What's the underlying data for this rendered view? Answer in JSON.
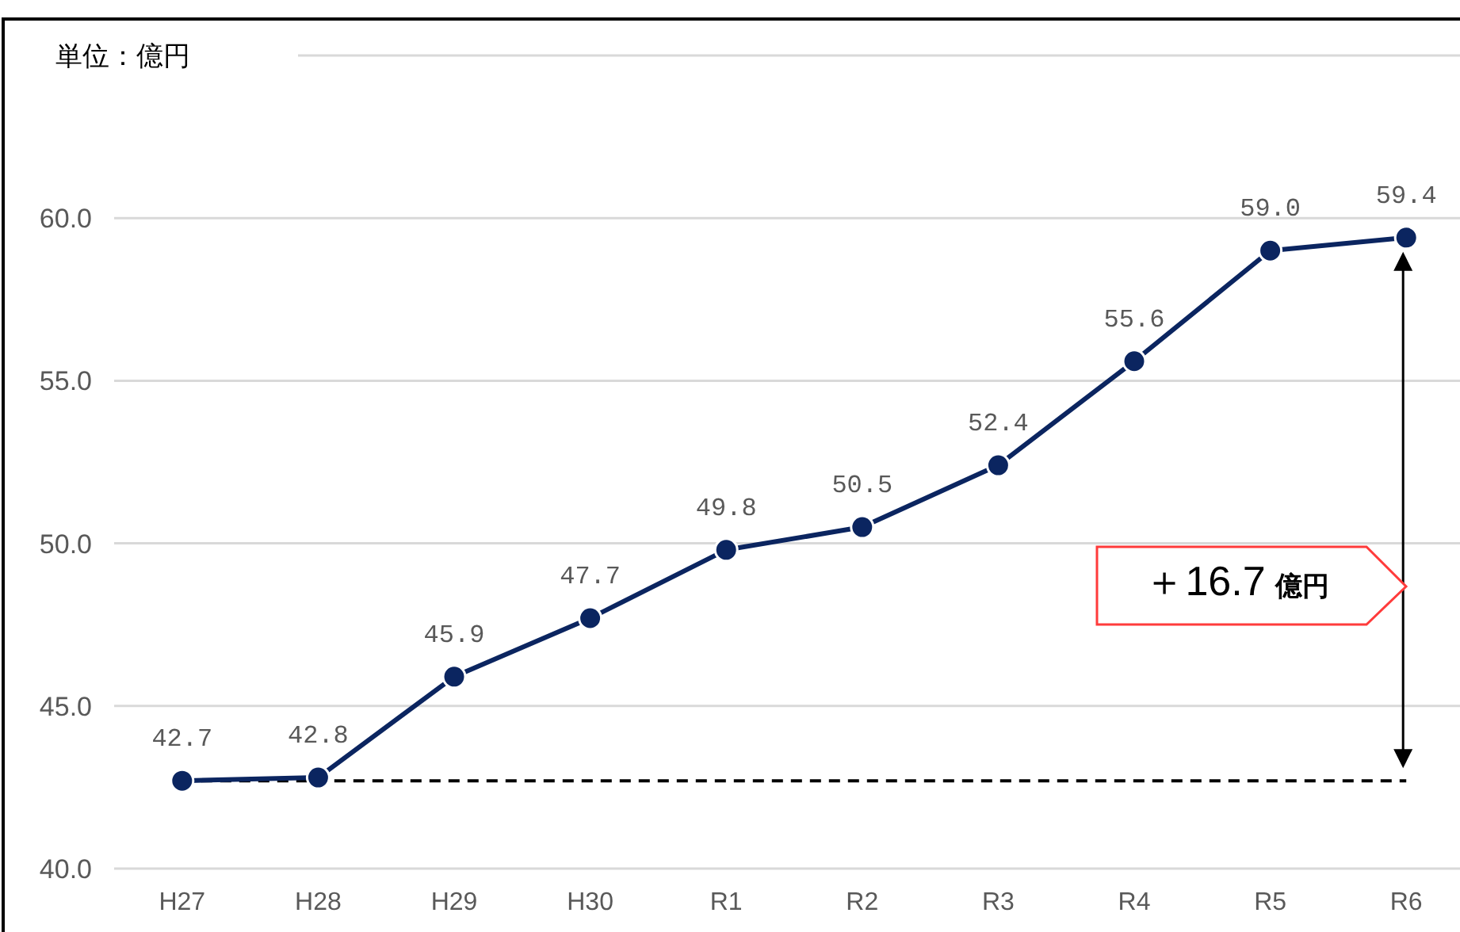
{
  "chart_data": {
    "type": "line",
    "ylabel": "単位：億円",
    "categories": [
      "H27",
      "H28",
      "H29",
      "H30",
      "R1",
      "R2",
      "R3",
      "R4",
      "R5",
      "R6"
    ],
    "series": [
      {
        "color": "#0b2560",
        "values": [
          42.7,
          42.8,
          45.9,
          47.7,
          49.8,
          50.5,
          52.4,
          55.6,
          59.0,
          59.4
        ]
      }
    ],
    "value_labels": [
      "42.7",
      "42.8",
      "45.9",
      "47.7",
      "49.8",
      "50.5",
      "52.4",
      "55.6",
      "59.0",
      "59.4"
    ],
    "ylim": [
      40,
      65
    ],
    "yticks": [
      {
        "value": 40,
        "label": "40.0"
      },
      {
        "value": 45,
        "label": "45.0"
      },
      {
        "value": 50,
        "label": "50.0"
      },
      {
        "value": 55,
        "label": "55.0"
      },
      {
        "value": 60,
        "label": "60.0"
      },
      {
        "value": 65,
        "label": null
      }
    ],
    "grid": "y",
    "marker": "circle",
    "line_style": "solid",
    "ref_lines": [
      {
        "axis": "y",
        "value": 42.7,
        "line_style": "dashed",
        "color": "#000000"
      }
    ],
    "annotations": [
      "＋16.7 億円"
    ]
  }
}
